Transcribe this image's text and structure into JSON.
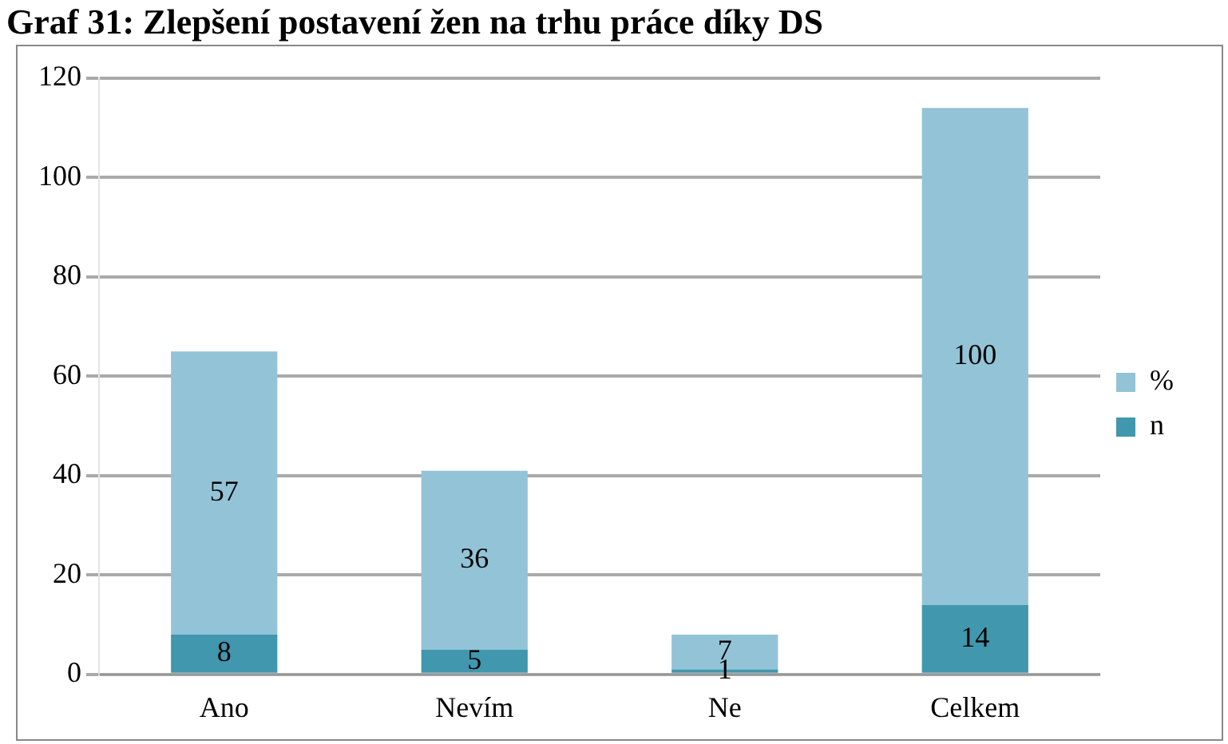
{
  "chart_data": {
    "type": "bar",
    "title": "Graf 31: Zlepšení postavení žen na trhu práce díky DS",
    "categories": [
      "Ano",
      "Nevím",
      "Ne",
      "Celkem"
    ],
    "stacked": true,
    "series": [
      {
        "name": "n",
        "color": "#4197ad",
        "values": [
          8,
          5,
          1,
          14
        ]
      },
      {
        "name": "%",
        "color": "#93c3d6",
        "values": [
          57,
          36,
          7,
          100
        ]
      }
    ],
    "ylim": [
      0,
      120
    ],
    "yticks": [
      0,
      20,
      40,
      60,
      80,
      100,
      120
    ],
    "grid": "y",
    "legend": "right",
    "data_labels": true
  }
}
